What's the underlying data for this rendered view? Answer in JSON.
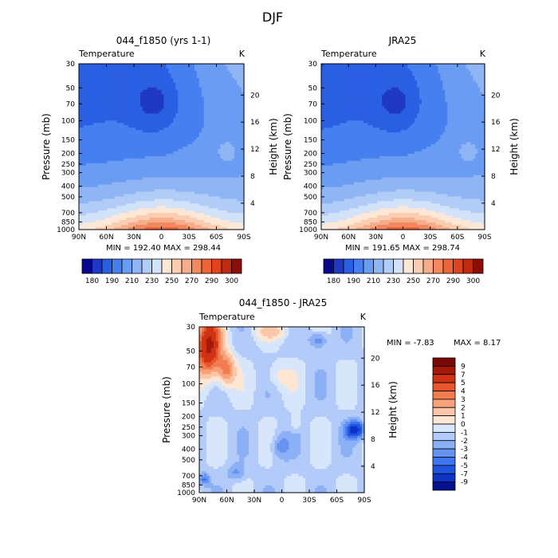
{
  "title": "DJF",
  "colors": {
    "temp_levels": [
      "#08088c",
      "#1f39c4",
      "#2b5fe3",
      "#4680f0",
      "#6a9cf3",
      "#8fb5f5",
      "#b0ccf7",
      "#d2e3f9",
      "#fde8d8",
      "#fbcdb0",
      "#f7ac8c",
      "#f3885f",
      "#ed6437",
      "#e0431e",
      "#c12a0e",
      "#8b0d05"
    ],
    "diff_levels": [
      "#05108e",
      "#0d33c7",
      "#1f55e0",
      "#3d76ee",
      "#6594f3",
      "#8cb0f6",
      "#b3cbf8",
      "#d8e6fb",
      "#fde6d4",
      "#fbc7a8",
      "#f7a27b",
      "#f27d51",
      "#e8562d",
      "#cf3314",
      "#a3190a",
      "#7a0904"
    ]
  },
  "chart_data": [
    {
      "id": "model",
      "type": "heatmap",
      "title": "044_f1850 (yrs 1-1)",
      "corner_label_left": "Temperature",
      "corner_label_right": "K",
      "xlabel": "",
      "ylabel": "Pressure (mb)",
      "ylabel_right": "Height (km)",
      "x_ticks": [
        "90N",
        "60N",
        "30N",
        "0",
        "30S",
        "60S",
        "90S"
      ],
      "y_ticks": [
        "30",
        "50",
        "70",
        "100",
        "150",
        "200",
        "250",
        "300",
        "400",
        "500",
        "700",
        "850",
        "1000"
      ],
      "height_ticks": [
        "20",
        "16",
        "12",
        "8",
        "4"
      ],
      "stats": "MIN = 192.40   MAX = 298.44",
      "min": 192.4,
      "max": 298.44,
      "colorbar_labels": [
        "180",
        "190",
        "210",
        "230",
        "250",
        "270",
        "290",
        "300"
      ]
    },
    {
      "id": "obs",
      "type": "heatmap",
      "title": "JRA25",
      "corner_label_left": "Temperature",
      "corner_label_right": "K",
      "xlabel": "",
      "ylabel": "Pressure (mb)",
      "ylabel_right": "Height (km)",
      "x_ticks": [
        "90N",
        "60N",
        "30N",
        "0",
        "30S",
        "60S",
        "90S"
      ],
      "y_ticks": [
        "30",
        "50",
        "70",
        "100",
        "150",
        "200",
        "250",
        "300",
        "400",
        "500",
        "700",
        "850",
        "1000"
      ],
      "height_ticks": [
        "20",
        "16",
        "12",
        "8",
        "4"
      ],
      "stats": "MIN = 191.65   MAX = 298.74",
      "min": 191.65,
      "max": 298.74,
      "colorbar_labels": [
        "180",
        "190",
        "210",
        "230",
        "250",
        "270",
        "290",
        "300"
      ]
    },
    {
      "id": "diff",
      "type": "heatmap",
      "title": "044_f1850 - JRA25",
      "corner_label_left": "Temperature",
      "corner_label_right": "K",
      "xlabel": "",
      "ylabel": "Pressure (mb)",
      "ylabel_right": "Height (km)",
      "x_ticks": [
        "90N",
        "60N",
        "30N",
        "0",
        "30S",
        "60S",
        "90S"
      ],
      "y_ticks": [
        "30",
        "50",
        "70",
        "100",
        "150",
        "200",
        "250",
        "300",
        "400",
        "500",
        "700",
        "850",
        "1000"
      ],
      "height_ticks": [
        "20",
        "16",
        "12",
        "8",
        "4"
      ],
      "stats_min": "MIN =   -7.83",
      "stats_max": "MAX =    8.17",
      "min": -7.83,
      "max": 8.17,
      "colorbar_labels": [
        "9",
        "7",
        "5",
        "4",
        "3",
        "2",
        "1",
        "0",
        "-1",
        "-2",
        "-3",
        "-4",
        "-5",
        "-7",
        "-9"
      ]
    }
  ]
}
